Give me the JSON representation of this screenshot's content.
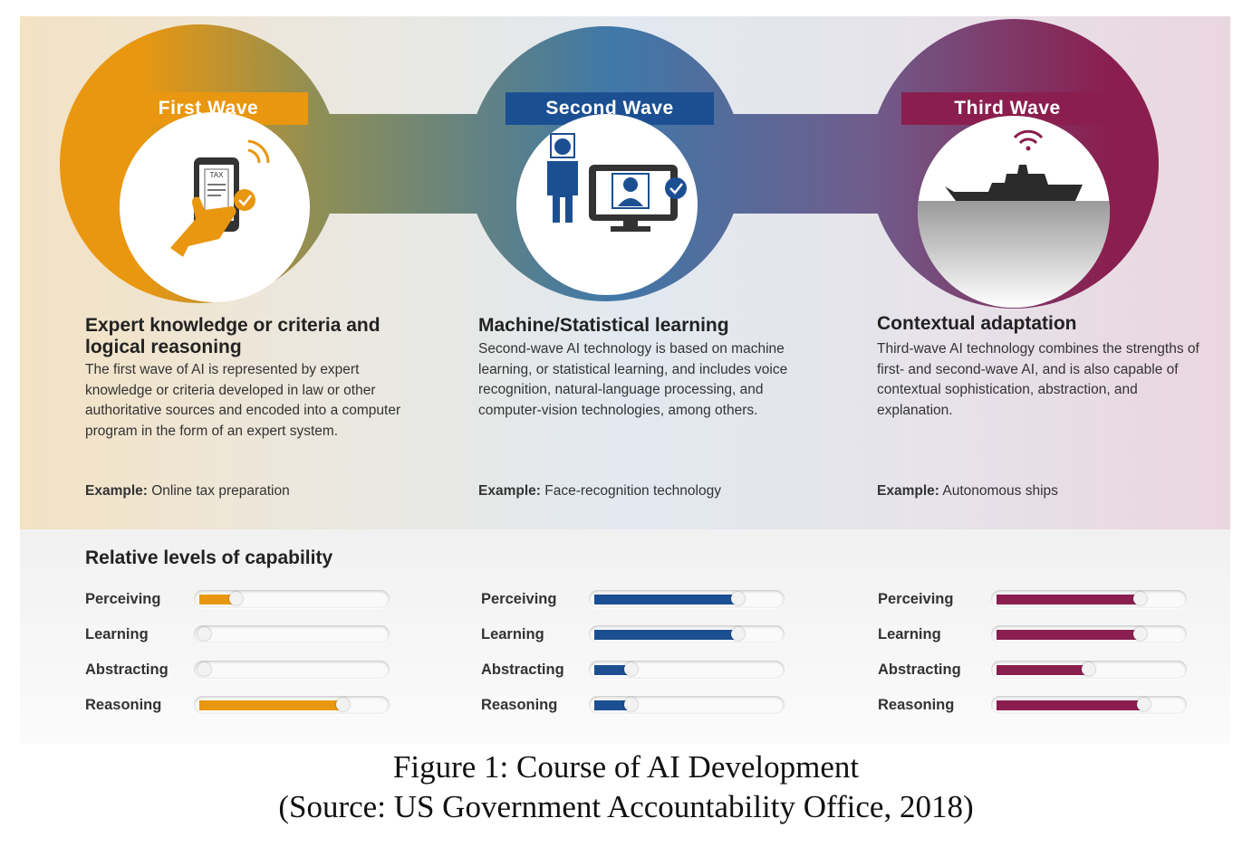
{
  "colors": {
    "first": "#e99710",
    "second": "#1c4f92",
    "third": "#8a1f4f"
  },
  "waves": [
    {
      "label": "First Wave",
      "icon": "tax-phone-icon",
      "tax_text": "TAX",
      "title": "Expert knowledge or criteria and logical reasoning",
      "description": "The first wave of AI is represented by expert knowledge or criteria developed in law or other authoritative sources and encoded into a computer program in the form of an expert system.",
      "example_label": "Example:",
      "example": "Online tax preparation"
    },
    {
      "label": "Second Wave",
      "icon": "face-recognition-icon",
      "title": "Machine/Statistical learning",
      "description": "Second-wave AI technology is based on machine learning, or statistical learning, and includes voice recognition, natural-language processing, and computer-vision technologies, among others.",
      "example_label": "Example:",
      "example": "Face-recognition technology"
    },
    {
      "label": "Third Wave",
      "icon": "autonomous-ship-icon",
      "title": "Contextual adaptation",
      "description": "Third-wave AI technology combines the strengths of first- and second-wave AI, and is also capable of contextual sophistication, abstraction, and explanation.",
      "example_label": "Example:",
      "example": "Autonomous ships"
    }
  ],
  "capability": {
    "heading": "Relative levels of capability",
    "groups": [
      {
        "wave": "First Wave",
        "levels": [
          {
            "label": "Perceiving",
            "level": 0.2
          },
          {
            "label": "Learning",
            "level": 0.0
          },
          {
            "label": "Abstracting",
            "level": 0.0
          },
          {
            "label": "Reasoning",
            "level": 0.78
          }
        ]
      },
      {
        "wave": "Second Wave",
        "levels": [
          {
            "label": "Perceiving",
            "level": 0.78
          },
          {
            "label": "Learning",
            "level": 0.78
          },
          {
            "label": "Abstracting",
            "level": 0.2
          },
          {
            "label": "Reasoning",
            "level": 0.2
          }
        ]
      },
      {
        "wave": "Third Wave",
        "levels": [
          {
            "label": "Perceiving",
            "level": 0.78
          },
          {
            "label": "Learning",
            "level": 0.78
          },
          {
            "label": "Abstracting",
            "level": 0.5
          },
          {
            "label": "Reasoning",
            "level": 0.8
          }
        ]
      }
    ]
  },
  "caption": {
    "line1": "Figure 1: Course of AI Development",
    "line2": "(Source: US Government Accountability Office, 2018)"
  }
}
